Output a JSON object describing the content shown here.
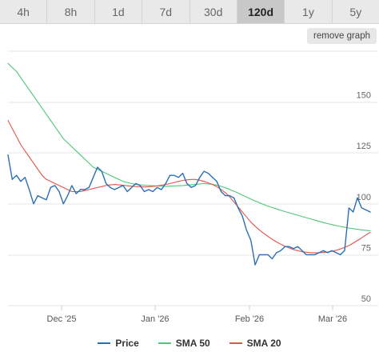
{
  "range_tabs": [
    {
      "label": "4h",
      "active": false
    },
    {
      "label": "8h",
      "active": false
    },
    {
      "label": "1d",
      "active": false
    },
    {
      "label": "7d",
      "active": false
    },
    {
      "label": "30d",
      "active": false
    },
    {
      "label": "120d",
      "active": true
    },
    {
      "label": "1y",
      "active": false
    },
    {
      "label": "5y",
      "active": false
    }
  ],
  "remove_graph_label": "remove graph",
  "colors": {
    "price": "#2a6fb4",
    "sma50": "#4fc779",
    "sma20": "#e4534a",
    "grid": "#e4e4e4"
  },
  "chart_data": {
    "type": "line",
    "x_tick_labels": [
      "Dec '25",
      "Jan '26",
      "Feb '26",
      "Mar '26"
    ],
    "y_tick_labels": [
      "50",
      "75",
      "100",
      "125",
      "150"
    ],
    "ylim": [
      50,
      175
    ],
    "y_axis_position": "right",
    "grid": true,
    "legend_position": "bottom",
    "series": [
      {
        "name": "Price",
        "color_key": "price",
        "values": [
          124,
          112,
          114,
          111,
          113,
          107,
          100,
          104,
          103,
          102,
          108,
          109,
          106,
          100,
          104,
          109,
          105,
          107,
          107,
          108,
          113,
          118,
          116,
          110,
          108,
          107,
          108,
          109,
          106,
          108,
          110,
          109,
          106,
          107,
          106,
          108,
          107,
          110,
          114,
          114,
          113,
          115,
          110,
          108,
          109,
          113,
          116,
          115,
          113,
          111,
          106,
          104,
          104,
          103,
          98,
          94,
          87,
          82,
          70,
          75,
          75,
          75,
          73,
          76,
          77,
          79,
          79,
          78,
          79,
          77,
          75,
          75,
          75,
          76,
          77,
          76,
          77,
          76,
          75,
          77,
          98,
          96,
          103,
          98,
          97,
          96
        ]
      },
      {
        "name": "SMA 50",
        "color_key": "sma50",
        "values": [
          169,
          167,
          165,
          162,
          159,
          156,
          153,
          150,
          147,
          144,
          141,
          138,
          135,
          132,
          130,
          128,
          126,
          124,
          122,
          120,
          118,
          117,
          116,
          115,
          114,
          113,
          112,
          111,
          110.5,
          110,
          109.6,
          109.3,
          109.1,
          109,
          108.9,
          108.8,
          108.7,
          108.6,
          108.7,
          108.8,
          108.9,
          109,
          109.2,
          109.4,
          109.6,
          109.8,
          110,
          109.8,
          109.6,
          109.2,
          108.6,
          107.9,
          107.1,
          106.2,
          105.3,
          104.3,
          103.3,
          102.3,
          101.4,
          100.5,
          99.7,
          98.9,
          98.2,
          97.5,
          96.8,
          96.2,
          95.6,
          95,
          94.4,
          93.8,
          93.2,
          92.6,
          92,
          91.4,
          90.8,
          90.3,
          89.8,
          89.3,
          88.9,
          88.5,
          88.1,
          87.8,
          87.5,
          87.2,
          87,
          86.8
        ]
      },
      {
        "name": "SMA 20",
        "color_key": "sma20",
        "values": [
          141,
          137,
          133,
          129,
          126,
          123,
          120,
          117,
          114,
          112,
          111,
          110,
          109,
          108,
          107,
          106,
          106,
          106,
          106.5,
          107,
          107.5,
          108,
          108.5,
          109,
          109.3,
          109.5,
          109.3,
          109.1,
          108.9,
          108.7,
          108.5,
          108.4,
          108.3,
          108.4,
          108.6,
          108.8,
          109.1,
          109.5,
          110,
          110.5,
          111,
          111.5,
          111.8,
          112,
          112,
          111.6,
          111,
          110.3,
          109.5,
          108.5,
          107,
          105.5,
          103.5,
          101,
          98.5,
          96,
          93.5,
          91,
          89,
          87.2,
          85.5,
          84,
          82.6,
          81.3,
          80.2,
          79.2,
          78.3,
          77.5,
          77,
          76.5,
          76.2,
          76,
          76,
          76,
          76.1,
          76.3,
          76.7,
          77.2,
          77.8,
          78.6,
          79.5,
          80.7,
          82,
          83.3,
          84.7,
          86
        ]
      }
    ]
  }
}
